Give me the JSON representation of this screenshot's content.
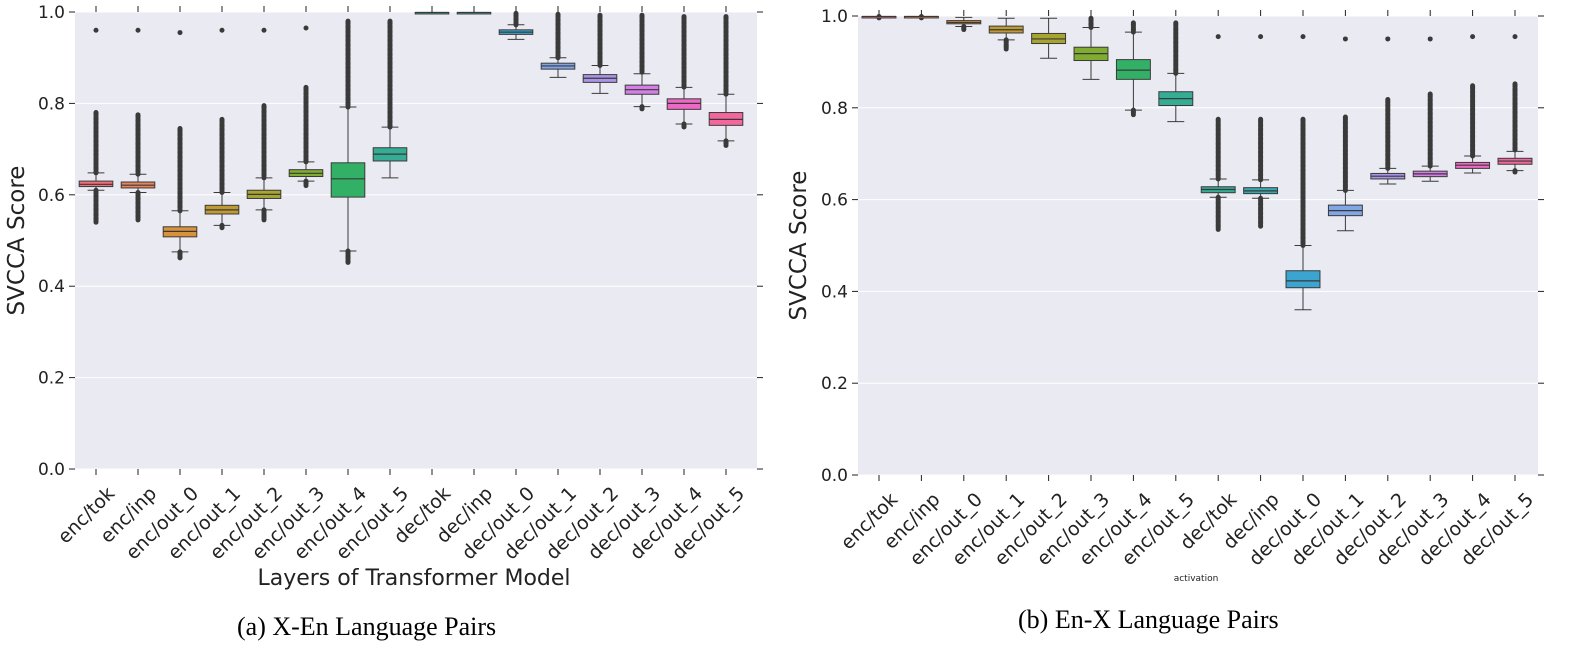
{
  "captions": {
    "a": "(a) X-En Language Pairs",
    "b": "(b) En-X Language Pairs"
  },
  "colors": [
    "#f0717c",
    "#e9845a",
    "#d9913a",
    "#bf9a32",
    "#a7a431",
    "#80ac32",
    "#32b166",
    "#35ac94",
    "#37aaaf",
    "#3ba5cf",
    "#80a6e6",
    "#aa94e8",
    "#d47ee6",
    "#f068c5",
    "#f4679e"
  ],
  "chart_data": [
    {
      "type": "boxplot",
      "title": "",
      "xlabel": "Layers of Transformer Model",
      "ylabel": "SVCCA Score",
      "ylim": [
        0,
        1
      ],
      "yticks": [
        0.0,
        0.2,
        0.4,
        0.6,
        0.8,
        1.0
      ],
      "ytick_labels": [
        "0.0",
        "0.2",
        "0.4",
        "0.6",
        "0.8",
        "1.0"
      ],
      "grid": true,
      "categories": [
        "enc/tok",
        "enc/inp",
        "enc/out_0",
        "enc/out_1",
        "enc/out_2",
        "enc/out_3",
        "enc/out_4",
        "enc/out_5",
        "dec/tok",
        "dec/inp",
        "dec/out_0",
        "dec/out_1",
        "dec/out_2",
        "dec/out_3",
        "dec/out_4",
        "dec/out_5"
      ],
      "color_index": [
        0,
        1,
        2,
        3,
        4,
        5,
        6,
        7,
        7,
        8,
        9,
        10,
        11,
        12,
        13,
        14
      ],
      "boxes": [
        {
          "low": 0.61,
          "q1": 0.618,
          "median": 0.623,
          "q3": 0.63,
          "high": 0.648,
          "out_low": 0.54,
          "out_high": 0.78,
          "extra": [
            0.96
          ]
        },
        {
          "low": 0.605,
          "q1": 0.615,
          "median": 0.621,
          "q3": 0.628,
          "high": 0.645,
          "out_low": 0.545,
          "out_high": 0.775,
          "extra": [
            0.96
          ]
        },
        {
          "low": 0.475,
          "q1": 0.508,
          "median": 0.52,
          "q3": 0.53,
          "high": 0.565,
          "out_low": 0.462,
          "out_high": 0.745,
          "extra": [
            0.955
          ]
        },
        {
          "low": 0.533,
          "q1": 0.558,
          "median": 0.567,
          "q3": 0.577,
          "high": 0.605,
          "out_low": 0.528,
          "out_high": 0.765,
          "extra": [
            0.96
          ]
        },
        {
          "low": 0.567,
          "q1": 0.592,
          "median": 0.601,
          "q3": 0.61,
          "high": 0.637,
          "out_low": 0.545,
          "out_high": 0.795,
          "extra": [
            0.96
          ]
        },
        {
          "low": 0.63,
          "q1": 0.64,
          "median": 0.647,
          "q3": 0.655,
          "high": 0.672,
          "out_low": 0.62,
          "out_high": 0.835,
          "extra": [
            0.965
          ]
        },
        {
          "low": 0.477,
          "q1": 0.595,
          "median": 0.635,
          "q3": 0.67,
          "high": 0.792,
          "out_low": 0.452,
          "out_high": 0.98,
          "extra": []
        },
        {
          "low": 0.637,
          "q1": 0.674,
          "median": 0.689,
          "q3": 0.703,
          "high": 0.748,
          "out_low": 0.637,
          "out_high": 0.98,
          "extra": []
        },
        {
          "low": 0.999,
          "q1": 0.999,
          "median": 0.999,
          "q3": 0.999,
          "high": 0.999,
          "out_low": 0.999,
          "out_high": 0.999,
          "extra": []
        },
        {
          "low": 0.999,
          "q1": 0.999,
          "median": 0.999,
          "q3": 0.999,
          "high": 0.999,
          "out_low": 0.999,
          "out_high": 0.999,
          "extra": []
        },
        {
          "low": 0.94,
          "q1": 0.951,
          "median": 0.956,
          "q3": 0.961,
          "high": 0.972,
          "out_low": 0.94,
          "out_high": 0.997,
          "extra": []
        },
        {
          "low": 0.857,
          "q1": 0.875,
          "median": 0.882,
          "q3": 0.888,
          "high": 0.9,
          "out_low": 0.855,
          "out_high": 0.995,
          "extra": []
        },
        {
          "low": 0.822,
          "q1": 0.846,
          "median": 0.855,
          "q3": 0.863,
          "high": 0.883,
          "out_low": 0.82,
          "out_high": 0.993,
          "extra": []
        },
        {
          "low": 0.793,
          "q1": 0.82,
          "median": 0.83,
          "q3": 0.84,
          "high": 0.865,
          "out_low": 0.788,
          "out_high": 0.993,
          "extra": []
        },
        {
          "low": 0.755,
          "q1": 0.787,
          "median": 0.8,
          "q3": 0.81,
          "high": 0.835,
          "out_low": 0.748,
          "out_high": 0.99,
          "extra": []
        },
        {
          "low": 0.718,
          "q1": 0.752,
          "median": 0.765,
          "q3": 0.78,
          "high": 0.82,
          "out_low": 0.708,
          "out_high": 0.99,
          "extra": []
        }
      ]
    },
    {
      "type": "boxplot",
      "title": "",
      "xlabel": "activation",
      "ylabel": "SVCCA Score",
      "ylim": [
        0,
        1
      ],
      "yticks": [
        0.0,
        0.2,
        0.4,
        0.6,
        0.8,
        1.0
      ],
      "ytick_labels": [
        "0.0",
        "0.2",
        "0.4",
        "0.6",
        "0.8",
        "1.0"
      ],
      "grid": true,
      "categories": [
        "enc/tok",
        "enc/inp",
        "enc/out_0",
        "enc/out_1",
        "enc/out_2",
        "enc/out_3",
        "enc/out_4",
        "enc/out_5",
        "dec/tok",
        "dec/inp",
        "dec/out_0",
        "dec/out_1",
        "dec/out_2",
        "dec/out_3",
        "dec/out_4",
        "dec/out_5"
      ],
      "color_index": [
        0,
        1,
        2,
        3,
        4,
        5,
        6,
        7,
        7,
        8,
        9,
        10,
        11,
        12,
        13,
        14
      ],
      "boxes": [
        {
          "low": 0.999,
          "q1": 0.999,
          "median": 0.999,
          "q3": 0.999,
          "high": 0.999,
          "out_low": 0.996,
          "out_high": 1.0,
          "extra": []
        },
        {
          "low": 0.999,
          "q1": 0.999,
          "median": 0.999,
          "q3": 0.999,
          "high": 0.999,
          "out_low": 0.996,
          "out_high": 1.0,
          "extra": []
        },
        {
          "low": 0.977,
          "q1": 0.983,
          "median": 0.986,
          "q3": 0.99,
          "high": 0.997,
          "out_low": 0.97,
          "out_high": 0.997,
          "extra": []
        },
        {
          "low": 0.948,
          "q1": 0.963,
          "median": 0.97,
          "q3": 0.978,
          "high": 0.995,
          "out_low": 0.928,
          "out_high": 0.995,
          "extra": []
        },
        {
          "low": 0.908,
          "q1": 0.94,
          "median": 0.95,
          "q3": 0.962,
          "high": 0.995,
          "out_low": 0.908,
          "out_high": 0.995,
          "extra": []
        },
        {
          "low": 0.862,
          "q1": 0.903,
          "median": 0.918,
          "q3": 0.932,
          "high": 0.975,
          "out_low": 0.862,
          "out_high": 0.995,
          "extra": []
        },
        {
          "low": 0.795,
          "q1": 0.862,
          "median": 0.882,
          "q3": 0.905,
          "high": 0.965,
          "out_low": 0.785,
          "out_high": 0.985,
          "extra": []
        },
        {
          "low": 0.77,
          "q1": 0.805,
          "median": 0.82,
          "q3": 0.835,
          "high": 0.875,
          "out_low": 0.77,
          "out_high": 0.985,
          "extra": []
        },
        {
          "low": 0.605,
          "q1": 0.615,
          "median": 0.622,
          "q3": 0.628,
          "high": 0.645,
          "out_low": 0.535,
          "out_high": 0.775,
          "extra": [
            0.955
          ]
        },
        {
          "low": 0.603,
          "q1": 0.613,
          "median": 0.619,
          "q3": 0.626,
          "high": 0.643,
          "out_low": 0.542,
          "out_high": 0.775,
          "extra": [
            0.955
          ]
        },
        {
          "low": 0.36,
          "q1": 0.408,
          "median": 0.423,
          "q3": 0.445,
          "high": 0.5,
          "out_low": 0.36,
          "out_high": 0.775,
          "extra": [
            0.955
          ]
        },
        {
          "low": 0.532,
          "q1": 0.565,
          "median": 0.576,
          "q3": 0.588,
          "high": 0.62,
          "out_low": 0.53,
          "out_high": 0.78,
          "extra": [
            0.95
          ]
        },
        {
          "low": 0.634,
          "q1": 0.645,
          "median": 0.651,
          "q3": 0.657,
          "high": 0.668,
          "out_low": 0.632,
          "out_high": 0.818,
          "extra": [
            0.95
          ]
        },
        {
          "low": 0.64,
          "q1": 0.65,
          "median": 0.656,
          "q3": 0.662,
          "high": 0.673,
          "out_low": 0.638,
          "out_high": 0.83,
          "extra": [
            0.95
          ]
        },
        {
          "low": 0.658,
          "q1": 0.668,
          "median": 0.675,
          "q3": 0.681,
          "high": 0.695,
          "out_low": 0.658,
          "out_high": 0.848,
          "extra": [
            0.955
          ]
        },
        {
          "low": 0.663,
          "q1": 0.677,
          "median": 0.684,
          "q3": 0.69,
          "high": 0.705,
          "out_low": 0.66,
          "out_high": 0.852,
          "extra": [
            0.955
          ]
        }
      ]
    }
  ]
}
